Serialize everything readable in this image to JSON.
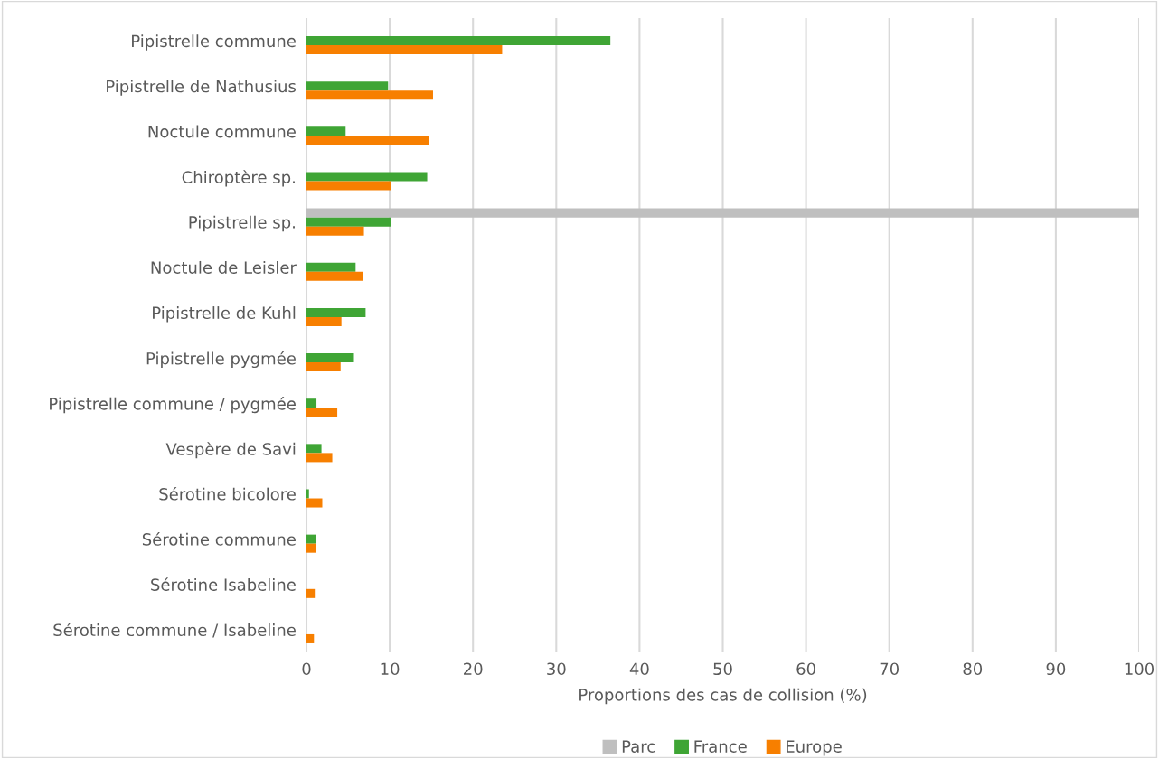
{
  "chart_data": {
    "type": "bar",
    "orientation": "horizontal",
    "xlabel": "Proportions des cas de collision (%)",
    "categories": [
      "Pipistrelle commune",
      "Pipistrelle de Nathusius",
      "Noctule commune",
      "Chiroptère sp.",
      "Pipistrelle sp.",
      "Noctule de Leisler",
      "Pipistrelle de Kuhl",
      "Pipistrelle pygmée",
      "Pipistrelle commune / pygmée",
      "Vespère de Savi",
      "Sérotine bicolore",
      "Sérotine commune",
      "Sérotine Isabeline",
      "Sérotine commune / Isabeline"
    ],
    "series": [
      {
        "name": "Parc",
        "color": "#bfbfbf",
        "values": [
          null,
          null,
          null,
          null,
          100,
          null,
          null,
          null,
          null,
          null,
          null,
          null,
          null,
          null
        ]
      },
      {
        "name": "France",
        "color": "#3fa535",
        "values": [
          36.5,
          9.8,
          4.7,
          14.5,
          10.2,
          5.9,
          7.1,
          5.7,
          1.2,
          1.8,
          0.3,
          1.1,
          null,
          null
        ]
      },
      {
        "name": "Europe",
        "color": "#f77f00",
        "values": [
          23.5,
          15.2,
          14.7,
          10.1,
          6.9,
          6.8,
          4.2,
          4.1,
          3.7,
          3.1,
          1.9,
          1.1,
          1.0,
          0.9
        ]
      }
    ],
    "xlim": [
      0,
      100
    ],
    "xticks": [
      0,
      10,
      20,
      30,
      40,
      50,
      60,
      70,
      80,
      90,
      100
    ],
    "grid": "x",
    "legend": "bottom"
  }
}
